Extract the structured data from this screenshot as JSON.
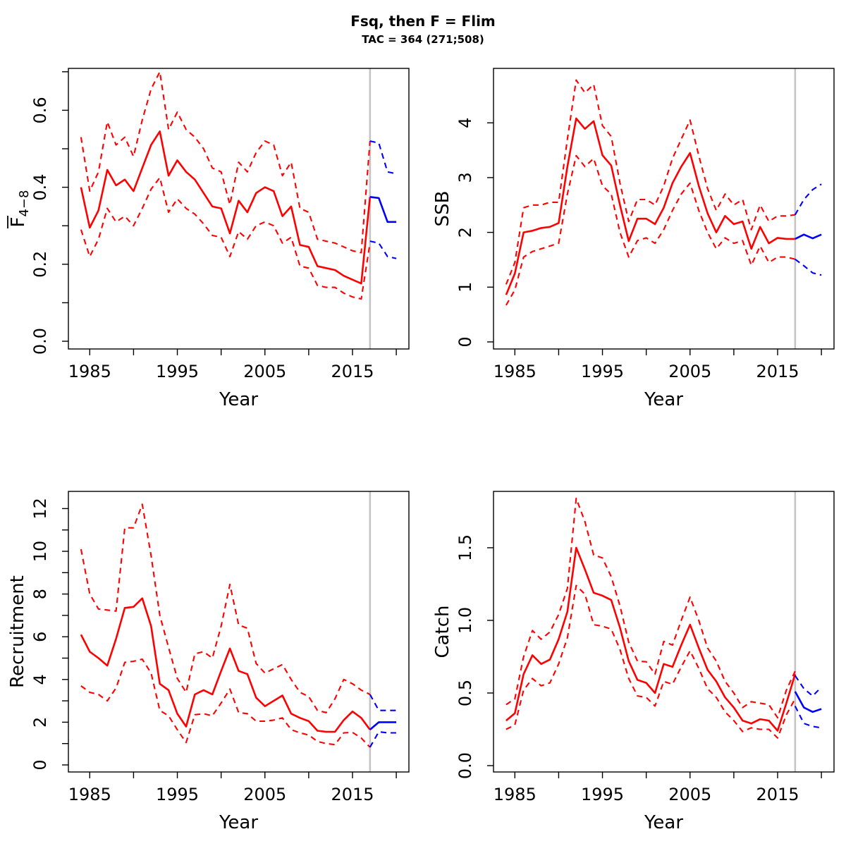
{
  "header": {
    "title": "Fsq, then F = Flim",
    "subtitle": "TAC = 364 (271;508)"
  },
  "colors": {
    "historical_line": "#ff0000",
    "projection_line": "#0000ff",
    "divider_line": "#c4c4c4",
    "axis": "#000000",
    "background": "#ffffff"
  },
  "projection_start_year": 2017,
  "years": {
    "historical": {
      "start": 1984,
      "end": 2017
    },
    "projection": {
      "start": 2017,
      "end": 2020
    }
  },
  "chart_data": [
    {
      "type": "line",
      "panel": "top-left",
      "ylabel": "F4-8",
      "ylabel_rich": {
        "base": "F",
        "overline": true,
        "subscript": "4−8"
      },
      "xlabel": "Year",
      "xlim": [
        1982.56,
        2021.44
      ],
      "ylim": [
        -0.0201,
        0.7088
      ],
      "x_ticks": [
        1985,
        1990,
        1995,
        2000,
        2005,
        2010,
        2015,
        2020
      ],
      "x_tick_labels": [
        "1985",
        "",
        "1995",
        "",
        "2005",
        "",
        "2015",
        ""
      ],
      "y_ticks": [
        0,
        0.1,
        0.2,
        0.3,
        0.4,
        0.5,
        0.6,
        0.7
      ],
      "y_tick_labels": [
        "0.0",
        "",
        "0.2",
        "",
        "0.4",
        "",
        "0.6",
        ""
      ],
      "series": [
        {
          "name": "ci-upper-historical",
          "period": "historical",
          "line": "dashed",
          "values": [
            0.53,
            0.39,
            0.44,
            0.57,
            0.51,
            0.53,
            0.48,
            0.575,
            0.655,
            0.7,
            0.55,
            0.595,
            0.55,
            0.53,
            0.5,
            0.45,
            0.44,
            0.355,
            0.465,
            0.44,
            0.49,
            0.52,
            0.51,
            0.43,
            0.465,
            0.345,
            0.335,
            0.265,
            0.26,
            0.255,
            0.245,
            0.235,
            0.23,
            0.52
          ]
        },
        {
          "name": "median-historical",
          "period": "historical",
          "line": "solid",
          "values": [
            0.4,
            0.295,
            0.34,
            0.445,
            0.405,
            0.42,
            0.39,
            0.45,
            0.51,
            0.545,
            0.43,
            0.47,
            0.44,
            0.42,
            0.385,
            0.35,
            0.345,
            0.28,
            0.365,
            0.335,
            0.385,
            0.4,
            0.39,
            0.325,
            0.35,
            0.25,
            0.245,
            0.195,
            0.19,
            0.185,
            0.17,
            0.16,
            0.15,
            0.375
          ]
        },
        {
          "name": "ci-lower-historical",
          "period": "historical",
          "line": "dashed",
          "values": [
            0.29,
            0.22,
            0.265,
            0.345,
            0.31,
            0.325,
            0.3,
            0.345,
            0.395,
            0.425,
            0.335,
            0.37,
            0.345,
            0.33,
            0.305,
            0.275,
            0.27,
            0.22,
            0.285,
            0.265,
            0.3,
            0.31,
            0.3,
            0.255,
            0.27,
            0.195,
            0.19,
            0.145,
            0.14,
            0.14,
            0.125,
            0.115,
            0.11,
            0.255
          ]
        },
        {
          "name": "ci-upper-projection",
          "period": "projection",
          "line": "dashed",
          "values": [
            0.52,
            0.515,
            0.44,
            0.435
          ]
        },
        {
          "name": "median-projection",
          "period": "projection",
          "line": "solid",
          "values": [
            0.375,
            0.372,
            0.31,
            0.31
          ]
        },
        {
          "name": "ci-lower-projection",
          "period": "projection",
          "line": "dashed",
          "values": [
            0.26,
            0.255,
            0.22,
            0.215
          ]
        }
      ]
    },
    {
      "type": "line",
      "panel": "top-right",
      "ylabel": "SSB",
      "xlabel": "Year",
      "xlim": [
        1982.56,
        2021.44
      ],
      "ylim": [
        -0.129,
        4.994
      ],
      "x_ticks": [
        1985,
        1990,
        1995,
        2000,
        2005,
        2010,
        2015,
        2020
      ],
      "x_tick_labels": [
        "1985",
        "",
        "1995",
        "",
        "2005",
        "",
        "2015",
        ""
      ],
      "y_ticks": [
        0,
        1,
        2,
        3,
        4
      ],
      "y_tick_labels": [
        "0",
        "1",
        "2",
        "3",
        "4"
      ],
      "series": [
        {
          "name": "ci-upper-historical",
          "period": "historical",
          "line": "dashed",
          "values": [
            1.05,
            1.45,
            2.45,
            2.5,
            2.5,
            2.55,
            2.55,
            3.7,
            4.78,
            4.55,
            4.7,
            3.95,
            3.75,
            2.9,
            2.2,
            2.6,
            2.6,
            2.5,
            2.85,
            3.35,
            3.7,
            4.05,
            3.4,
            2.8,
            2.4,
            2.7,
            2.5,
            2.6,
            2.05,
            2.5,
            2.2,
            2.3,
            2.3,
            2.32
          ]
        },
        {
          "name": "median-historical",
          "period": "historical",
          "line": "solid",
          "values": [
            0.86,
            1.25,
            2.0,
            2.03,
            2.08,
            2.1,
            2.17,
            3.2,
            4.08,
            3.89,
            4.03,
            3.41,
            3.22,
            2.5,
            1.84,
            2.25,
            2.25,
            2.15,
            2.45,
            2.9,
            3.2,
            3.45,
            2.85,
            2.35,
            2.0,
            2.3,
            2.15,
            2.2,
            1.7,
            2.1,
            1.8,
            1.9,
            1.88,
            1.88
          ]
        },
        {
          "name": "ci-lower-historical",
          "period": "historical",
          "line": "dashed",
          "values": [
            0.67,
            0.95,
            1.55,
            1.65,
            1.7,
            1.75,
            1.8,
            2.7,
            3.4,
            3.2,
            3.35,
            2.85,
            2.7,
            2.0,
            1.55,
            1.85,
            1.9,
            1.8,
            2.05,
            2.4,
            2.7,
            2.9,
            2.4,
            2.0,
            1.7,
            1.9,
            1.8,
            1.85,
            1.4,
            1.75,
            1.45,
            1.55,
            1.55,
            1.51
          ]
        },
        {
          "name": "ci-upper-projection",
          "period": "projection",
          "line": "dashed",
          "values": [
            2.32,
            2.6,
            2.78,
            2.88
          ]
        },
        {
          "name": "median-projection",
          "period": "projection",
          "line": "solid",
          "values": [
            1.88,
            1.96,
            1.89,
            1.96
          ]
        },
        {
          "name": "ci-lower-projection",
          "period": "projection",
          "line": "dashed",
          "values": [
            1.51,
            1.39,
            1.26,
            1.22
          ]
        }
      ]
    },
    {
      "type": "line",
      "panel": "bottom-left",
      "ylabel": "Recruitment",
      "xlabel": "Year",
      "xlim": [
        1982.56,
        2021.44
      ],
      "ylim": [
        -0.33,
        12.805
      ],
      "x_ticks": [
        1985,
        1990,
        1995,
        2000,
        2005,
        2010,
        2015,
        2020
      ],
      "x_tick_labels": [
        "1985",
        "",
        "1995",
        "",
        "2005",
        "",
        "2015",
        ""
      ],
      "y_ticks": [
        0,
        1,
        2,
        3,
        4,
        5,
        6,
        7,
        8,
        9,
        10,
        11,
        12
      ],
      "y_tick_labels": [
        "0",
        "",
        "2",
        "",
        "4",
        "",
        "6",
        "",
        "8",
        "",
        "10",
        "",
        "12"
      ],
      "series": [
        {
          "name": "ci-upper-historical",
          "period": "historical",
          "line": "dashed",
          "values": [
            10.1,
            8.0,
            7.3,
            7.25,
            7.2,
            11.1,
            11.1,
            12.2,
            9.8,
            7.0,
            5.5,
            4.05,
            3.4,
            5.2,
            5.3,
            5.0,
            6.5,
            8.45,
            6.55,
            6.4,
            4.75,
            4.3,
            4.5,
            4.7,
            4.0,
            3.4,
            3.2,
            2.55,
            2.45,
            3.1,
            4.0,
            3.8,
            3.5,
            3.3
          ]
        },
        {
          "name": "median-historical",
          "period": "historical",
          "line": "solid",
          "values": [
            6.1,
            5.3,
            5.0,
            4.65,
            5.9,
            7.35,
            7.4,
            7.8,
            6.5,
            3.8,
            3.5,
            2.4,
            1.8,
            3.3,
            3.5,
            3.3,
            4.4,
            5.45,
            4.4,
            4.25,
            3.15,
            2.75,
            3.0,
            3.25,
            2.4,
            2.2,
            2.05,
            1.6,
            1.55,
            1.55,
            2.1,
            2.5,
            2.2,
            1.65
          ]
        },
        {
          "name": "ci-lower-historical",
          "period": "historical",
          "line": "dashed",
          "values": [
            3.7,
            3.4,
            3.3,
            3.0,
            3.6,
            4.8,
            4.85,
            4.95,
            4.3,
            2.55,
            2.3,
            1.65,
            1.05,
            2.35,
            2.4,
            2.3,
            2.9,
            3.55,
            2.45,
            2.4,
            2.05,
            2.05,
            2.1,
            2.2,
            1.65,
            1.5,
            1.4,
            1.1,
            1.0,
            0.95,
            1.5,
            1.52,
            1.26,
            0.83
          ]
        },
        {
          "name": "ci-upper-projection",
          "period": "projection",
          "line": "dashed",
          "values": [
            3.3,
            2.55,
            2.55,
            2.55
          ]
        },
        {
          "name": "median-projection",
          "period": "projection",
          "line": "solid",
          "values": [
            1.65,
            2.0,
            2.0,
            2.0
          ]
        },
        {
          "name": "ci-lower-projection",
          "period": "projection",
          "line": "dashed",
          "values": [
            0.83,
            1.55,
            1.5,
            1.5
          ]
        }
      ]
    },
    {
      "type": "line",
      "panel": "bottom-right",
      "ylabel": "Catch",
      "xlabel": "Year",
      "xlim": [
        1982.56,
        2021.44
      ],
      "ylim": [
        -0.0437,
        1.888
      ],
      "x_ticks": [
        1985,
        1990,
        1995,
        2000,
        2005,
        2010,
        2015,
        2020
      ],
      "x_tick_labels": [
        "1985",
        "",
        "1995",
        "",
        "2005",
        "",
        "2015",
        ""
      ],
      "y_ticks": [
        0,
        0.5,
        1.0,
        1.5
      ],
      "y_tick_labels": [
        "0.0",
        "0.5",
        "1.0",
        "1.5"
      ],
      "series": [
        {
          "name": "ci-upper-historical",
          "period": "historical",
          "line": "dashed",
          "values": [
            0.42,
            0.46,
            0.75,
            0.93,
            0.87,
            0.92,
            1.04,
            1.22,
            1.84,
            1.68,
            1.45,
            1.43,
            1.3,
            1.1,
            0.85,
            0.72,
            0.715,
            0.63,
            0.855,
            0.83,
            1.0,
            1.16,
            1.0,
            0.81,
            0.72,
            0.58,
            0.5,
            0.4,
            0.44,
            0.43,
            0.42,
            0.33,
            0.52,
            0.65
          ]
        },
        {
          "name": "median-historical",
          "period": "historical",
          "line": "solid",
          "values": [
            0.31,
            0.36,
            0.63,
            0.76,
            0.7,
            0.73,
            0.87,
            1.06,
            1.5,
            1.35,
            1.19,
            1.17,
            1.14,
            0.95,
            0.72,
            0.59,
            0.57,
            0.5,
            0.7,
            0.68,
            0.83,
            0.97,
            0.81,
            0.66,
            0.58,
            0.47,
            0.4,
            0.31,
            0.29,
            0.32,
            0.31,
            0.24,
            0.43,
            0.63
          ]
        },
        {
          "name": "ci-lower-historical",
          "period": "historical",
          "line": "dashed",
          "values": [
            0.25,
            0.28,
            0.52,
            0.6,
            0.55,
            0.57,
            0.7,
            0.88,
            1.24,
            1.18,
            0.97,
            0.96,
            0.94,
            0.8,
            0.6,
            0.48,
            0.47,
            0.41,
            0.58,
            0.56,
            0.68,
            0.79,
            0.67,
            0.53,
            0.47,
            0.37,
            0.31,
            0.235,
            0.26,
            0.25,
            0.25,
            0.19,
            0.35,
            0.46
          ]
        },
        {
          "name": "ci-upper-projection",
          "period": "projection",
          "line": "dashed",
          "values": [
            0.62,
            0.53,
            0.48,
            0.54
          ]
        },
        {
          "name": "median-projection",
          "period": "projection",
          "line": "solid",
          "values": [
            0.51,
            0.4,
            0.37,
            0.39
          ]
        },
        {
          "name": "ci-lower-projection",
          "period": "projection",
          "line": "dashed",
          "values": [
            0.41,
            0.29,
            0.27,
            0.26
          ]
        }
      ]
    }
  ]
}
